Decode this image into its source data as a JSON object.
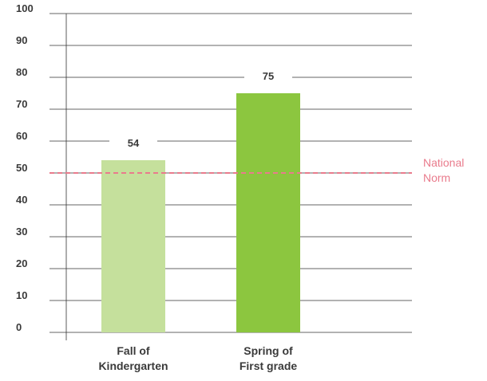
{
  "chart_data": {
    "type": "bar",
    "title": "",
    "xlabel": "",
    "ylabel": "",
    "categories": [
      [
        "Fall of",
        "Kindergarten"
      ],
      [
        "Spring of",
        "First grade"
      ]
    ],
    "values": [
      54,
      75
    ],
    "value_labels": [
      "54",
      "75"
    ],
    "bar_colors": [
      "#c5e09c",
      "#8cc63f"
    ],
    "ylim": [
      0,
      100
    ],
    "yticks": [
      0,
      10,
      20,
      30,
      40,
      50,
      60,
      70,
      80,
      90,
      100
    ],
    "ytick_labels": [
      "0",
      "10",
      "20",
      "30",
      "40",
      "50",
      "60",
      "70",
      "80",
      "90",
      "100"
    ],
    "grid": true,
    "reference_line": {
      "value": 50,
      "label_lines": [
        "National",
        "Norm"
      ],
      "color": "#e97b8c"
    }
  }
}
